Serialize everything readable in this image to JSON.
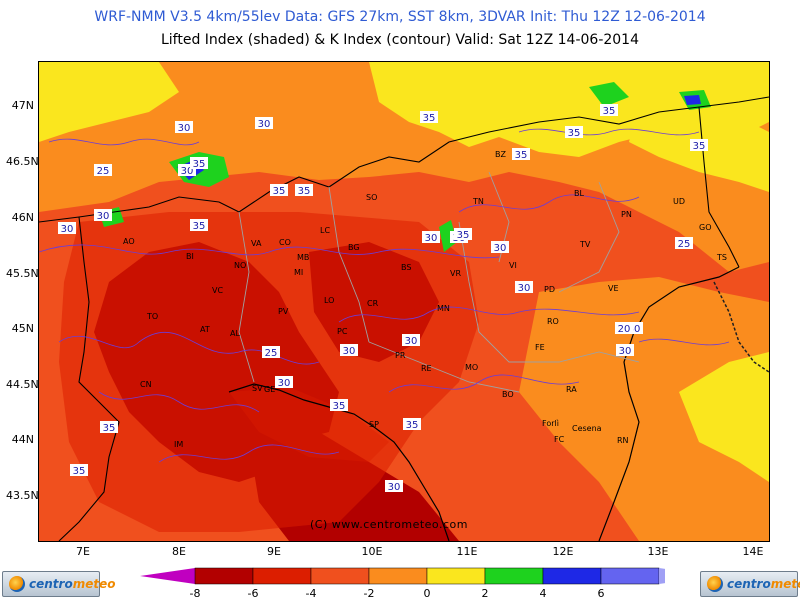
{
  "header": {
    "title_line1": "WRF-NMM V3.5 4km/55lev  Data: GFS 27km, SST 8km, 3DVAR  Init: Thu 12Z 12-06-2014",
    "title_line2": "Lifted Index (shaded) & K Index (contour)  Valid: Sat 12Z 14-06-2014"
  },
  "axes": {
    "lat_labels": [
      "47N",
      "46.5N",
      "46N",
      "45.5N",
      "45N",
      "44.5N",
      "44N",
      "43.5N"
    ],
    "lon_labels": [
      "7E",
      "8E",
      "9E",
      "10E",
      "11E",
      "12E",
      "13E",
      "14E"
    ]
  },
  "copyright": "(C) www.centrometeo.com",
  "logos": {
    "left": {
      "part1": "centro",
      "part2": "meteo"
    },
    "right": {
      "part1": "centro",
      "part2": "meteo"
    }
  },
  "legend": {
    "ticks": [
      "-8",
      "-6",
      "-4",
      "-2",
      "0",
      "2",
      "4",
      "6"
    ],
    "colors": [
      "#c000c0",
      "#b20000",
      "#dc1e00",
      "#f0501e",
      "#fa8c1e",
      "#fae61e",
      "#1ed21e",
      "#1e28e6",
      "#6464f0",
      "#a0a0f5"
    ]
  },
  "k_index_labels": [
    {
      "text": "30"
    },
    {
      "text": "30"
    },
    {
      "text": "35"
    },
    {
      "text": "25"
    },
    {
      "text": "30"
    },
    {
      "text": "35"
    },
    {
      "text": "30"
    },
    {
      "text": "30"
    },
    {
      "text": "35"
    },
    {
      "text": "35"
    },
    {
      "text": "35"
    },
    {
      "text": "35"
    },
    {
      "text": "35"
    },
    {
      "text": "35"
    },
    {
      "text": "35"
    },
    {
      "text": "30"
    },
    {
      "text": "30"
    },
    {
      "text": "35"
    },
    {
      "text": "30"
    },
    {
      "text": "30"
    },
    {
      "text": "25"
    },
    {
      "text": "30"
    },
    {
      "text": "20"
    },
    {
      "text": "30"
    },
    {
      "text": "25"
    },
    {
      "text": "30"
    },
    {
      "text": "30"
    },
    {
      "text": "30"
    },
    {
      "text": "35"
    },
    {
      "text": "35"
    },
    {
      "text": "35"
    },
    {
      "text": "35"
    },
    {
      "text": "30"
    }
  ],
  "cities": [
    "AO",
    "BI",
    "NO",
    "VA",
    "CO",
    "MB",
    "BG",
    "BS",
    "VR",
    "TN",
    "BZ",
    "BL",
    "PN",
    "UD",
    "GO",
    "TS",
    "TV",
    "VI",
    "PD",
    "VE",
    "RO",
    "FE",
    "MN",
    "CR",
    "PC",
    "PR",
    "RE",
    "MO",
    "BO",
    "RA",
    "Forlì",
    "Cesena",
    "FC",
    "RN",
    "TO",
    "VC",
    "AT",
    "AL",
    "PV",
    "LO",
    "MI",
    "CN",
    "SV",
    "GE",
    "SP",
    "IM",
    "SO",
    "LC"
  ]
}
